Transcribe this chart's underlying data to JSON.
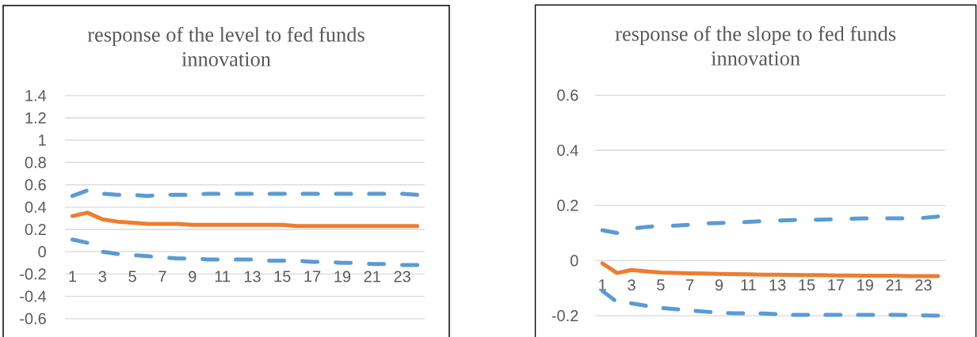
{
  "chart_data": [
    {
      "type": "line",
      "title": "response of the level to fed funds innovation",
      "categories": [
        "1",
        null,
        "3",
        null,
        "5",
        null,
        "7",
        null,
        "9",
        null,
        "11",
        null,
        "13",
        null,
        "15",
        null,
        "17",
        null,
        "19",
        null,
        "21",
        null,
        "23",
        null
      ],
      "series": [
        {
          "color": "#5b9bd5",
          "line_style": "dashed",
          "values": [
            0.5,
            0.55,
            0.52,
            0.51,
            0.51,
            0.5,
            0.51,
            0.51,
            0.51,
            0.52,
            0.52,
            0.52,
            0.52,
            0.52,
            0.52,
            0.52,
            0.52,
            0.52,
            0.52,
            0.52,
            0.52,
            0.52,
            0.52,
            0.51
          ]
        },
        {
          "color": "#ed7d31",
          "line_style": "solid",
          "values": [
            0.32,
            0.35,
            0.29,
            0.27,
            0.26,
            0.25,
            0.25,
            0.25,
            0.24,
            0.24,
            0.24,
            0.24,
            0.24,
            0.24,
            0.24,
            0.23,
            0.23,
            0.23,
            0.23,
            0.23,
            0.23,
            0.23,
            0.23,
            0.23
          ]
        },
        {
          "color": "#5b9bd5",
          "line_style": "dashed",
          "values": [
            0.11,
            0.08,
            0,
            -0.02,
            -0.03,
            -0.04,
            -0.05,
            -0.06,
            -0.06,
            -0.07,
            -0.07,
            -0.07,
            -0.07,
            -0.08,
            -0.08,
            -0.08,
            -0.09,
            -0.09,
            -0.1,
            -0.1,
            -0.11,
            -0.11,
            -0.12,
            -0.12
          ]
        }
      ],
      "ylim": [
        -0.6,
        1.4
      ],
      "yticks": [
        -0.6,
        -0.4,
        -0.2,
        0,
        0.2,
        0.4,
        0.6,
        0.8,
        1,
        1.2,
        1.4
      ],
      "grid": "y"
    },
    {
      "type": "line",
      "title": "response of the slope to fed funds innovation",
      "categories": [
        "1",
        null,
        "3",
        null,
        "5",
        null,
        "7",
        null,
        "9",
        null,
        "11",
        null,
        "13",
        null,
        "15",
        null,
        "17",
        null,
        "19",
        null,
        "21",
        null,
        "23",
        null
      ],
      "series": [
        {
          "color": "#5b9bd5",
          "line_style": "dashed",
          "values": [
            0.11,
            0.1,
            0.116,
            0.122,
            0.126,
            0.127,
            0.13,
            0.135,
            0.136,
            0.138,
            0.14,
            0.143,
            0.145,
            0.147,
            0.148,
            0.148,
            0.15,
            0.152,
            0.153,
            0.153,
            0.153,
            0.153,
            0.155,
            0.16
          ]
        },
        {
          "color": "#ed7d31",
          "line_style": "solid",
          "values": [
            -0.01,
            -0.045,
            -0.034,
            -0.039,
            -0.043,
            -0.045,
            -0.046,
            -0.047,
            -0.048,
            -0.049,
            -0.05,
            -0.051,
            -0.051,
            -0.052,
            -0.053,
            -0.053,
            -0.054,
            -0.054,
            -0.055,
            -0.055,
            -0.055,
            -0.056,
            -0.056,
            -0.056
          ]
        },
        {
          "color": "#5b9bd5",
          "line_style": "dashed",
          "values": [
            -0.11,
            -0.15,
            -0.155,
            -0.164,
            -0.172,
            -0.176,
            -0.181,
            -0.185,
            -0.189,
            -0.191,
            -0.191,
            -0.192,
            -0.194,
            -0.197,
            -0.197,
            -0.197,
            -0.197,
            -0.197,
            -0.197,
            -0.197,
            -0.197,
            -0.198,
            -0.199,
            -0.2
          ]
        }
      ],
      "ylim": [
        -0.2,
        0.6
      ],
      "yticks": [
        -0.2,
        0,
        0.2,
        0.4,
        0.6
      ],
      "grid": "y"
    }
  ]
}
